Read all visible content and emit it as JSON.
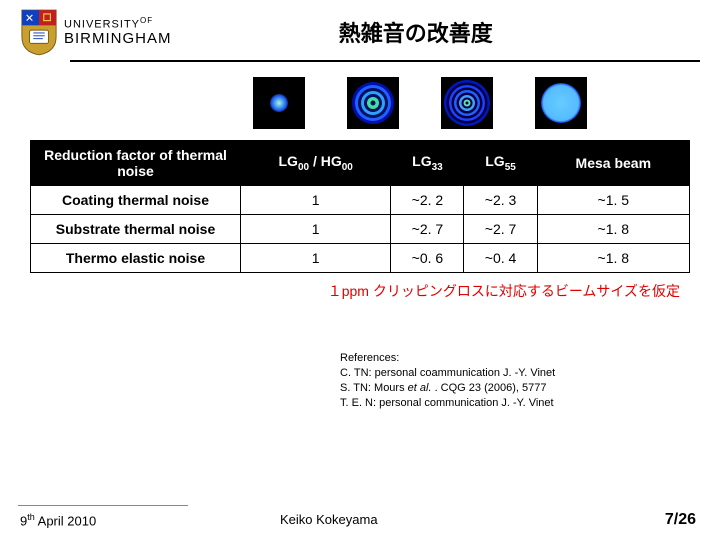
{
  "header": {
    "university_line1": "UNIVERSITY",
    "university_of": "OF",
    "university_line2": "BIRMINGHAM",
    "title": "熱雑音の改善度"
  },
  "beams": {
    "lg00": {
      "label": "LG00",
      "center_color": "#a0ffcc",
      "mid_color": "#2060ff",
      "bg": "#000000"
    },
    "lg33": {
      "label": "LG33",
      "rings": [
        {
          "d": 42,
          "c": "#0010b0"
        },
        {
          "d": 36,
          "c": "#2060ff"
        },
        {
          "d": 30,
          "c": "#001060"
        },
        {
          "d": 24,
          "c": "#30a0ff"
        },
        {
          "d": 18,
          "c": "#001060"
        },
        {
          "d": 12,
          "c": "#40e0a0"
        },
        {
          "d": 5,
          "c": "#001060"
        }
      ]
    },
    "lg55": {
      "label": "LG55",
      "rings": [
        {
          "d": 46,
          "c": "#0018c0"
        },
        {
          "d": 41,
          "c": "#000040"
        },
        {
          "d": 36,
          "c": "#2040ff"
        },
        {
          "d": 31,
          "c": "#000040"
        },
        {
          "d": 26,
          "c": "#2060ff"
        },
        {
          "d": 21,
          "c": "#000040"
        },
        {
          "d": 16,
          "c": "#40a0ff"
        },
        {
          "d": 11,
          "c": "#000040"
        },
        {
          "d": 7,
          "c": "#60e0b0"
        },
        {
          "d": 3,
          "c": "#000040"
        }
      ]
    },
    "mesa": {
      "label": "Mesa",
      "fill_color": "#66ccff",
      "edge_color": "#0022dd"
    }
  },
  "table": {
    "header_bg": "#000000",
    "header_fg": "#ffffff",
    "columns": {
      "c0": "Reduction factor of thermal noise",
      "c1_a": "LG",
      "c1_b": "00",
      "c1_c": " / HG",
      "c1_d": "00",
      "c2_a": "LG",
      "c2_b": "33",
      "c3_a": "LG",
      "c3_b": "55",
      "c4": "Mesa beam"
    },
    "rows": [
      {
        "label": "Coating thermal noise",
        "v1": "1",
        "v2": "~2. 2",
        "v3": "~2. 3",
        "v4": "~1. 5"
      },
      {
        "label": "Substrate thermal noise",
        "v1": "1",
        "v2": "~2. 7",
        "v3": "~2. 7",
        "v4": "~1. 8"
      },
      {
        "label": "Thermo elastic noise",
        "v1": "1",
        "v2": "~0. 6",
        "v3": "~0. 4",
        "v4": "~1. 8"
      }
    ]
  },
  "caption": "１ppm クリッピングロスに対応するビームサイズを仮定",
  "references": {
    "heading": "References:",
    "r1": "C. TN: personal coammunication J. -Y. Vinet",
    "r2a": "S. TN: Mours ",
    "r2b": "et al.",
    "r2c": " . CQG 23 (2006), 5777",
    "r3": "T. E. N: personal communication J. -Y. Vinet"
  },
  "footer": {
    "date_a": "9",
    "date_b": "th",
    "date_c": " April 2010",
    "author": "Keiko Kokeyama",
    "page": "7/26"
  }
}
